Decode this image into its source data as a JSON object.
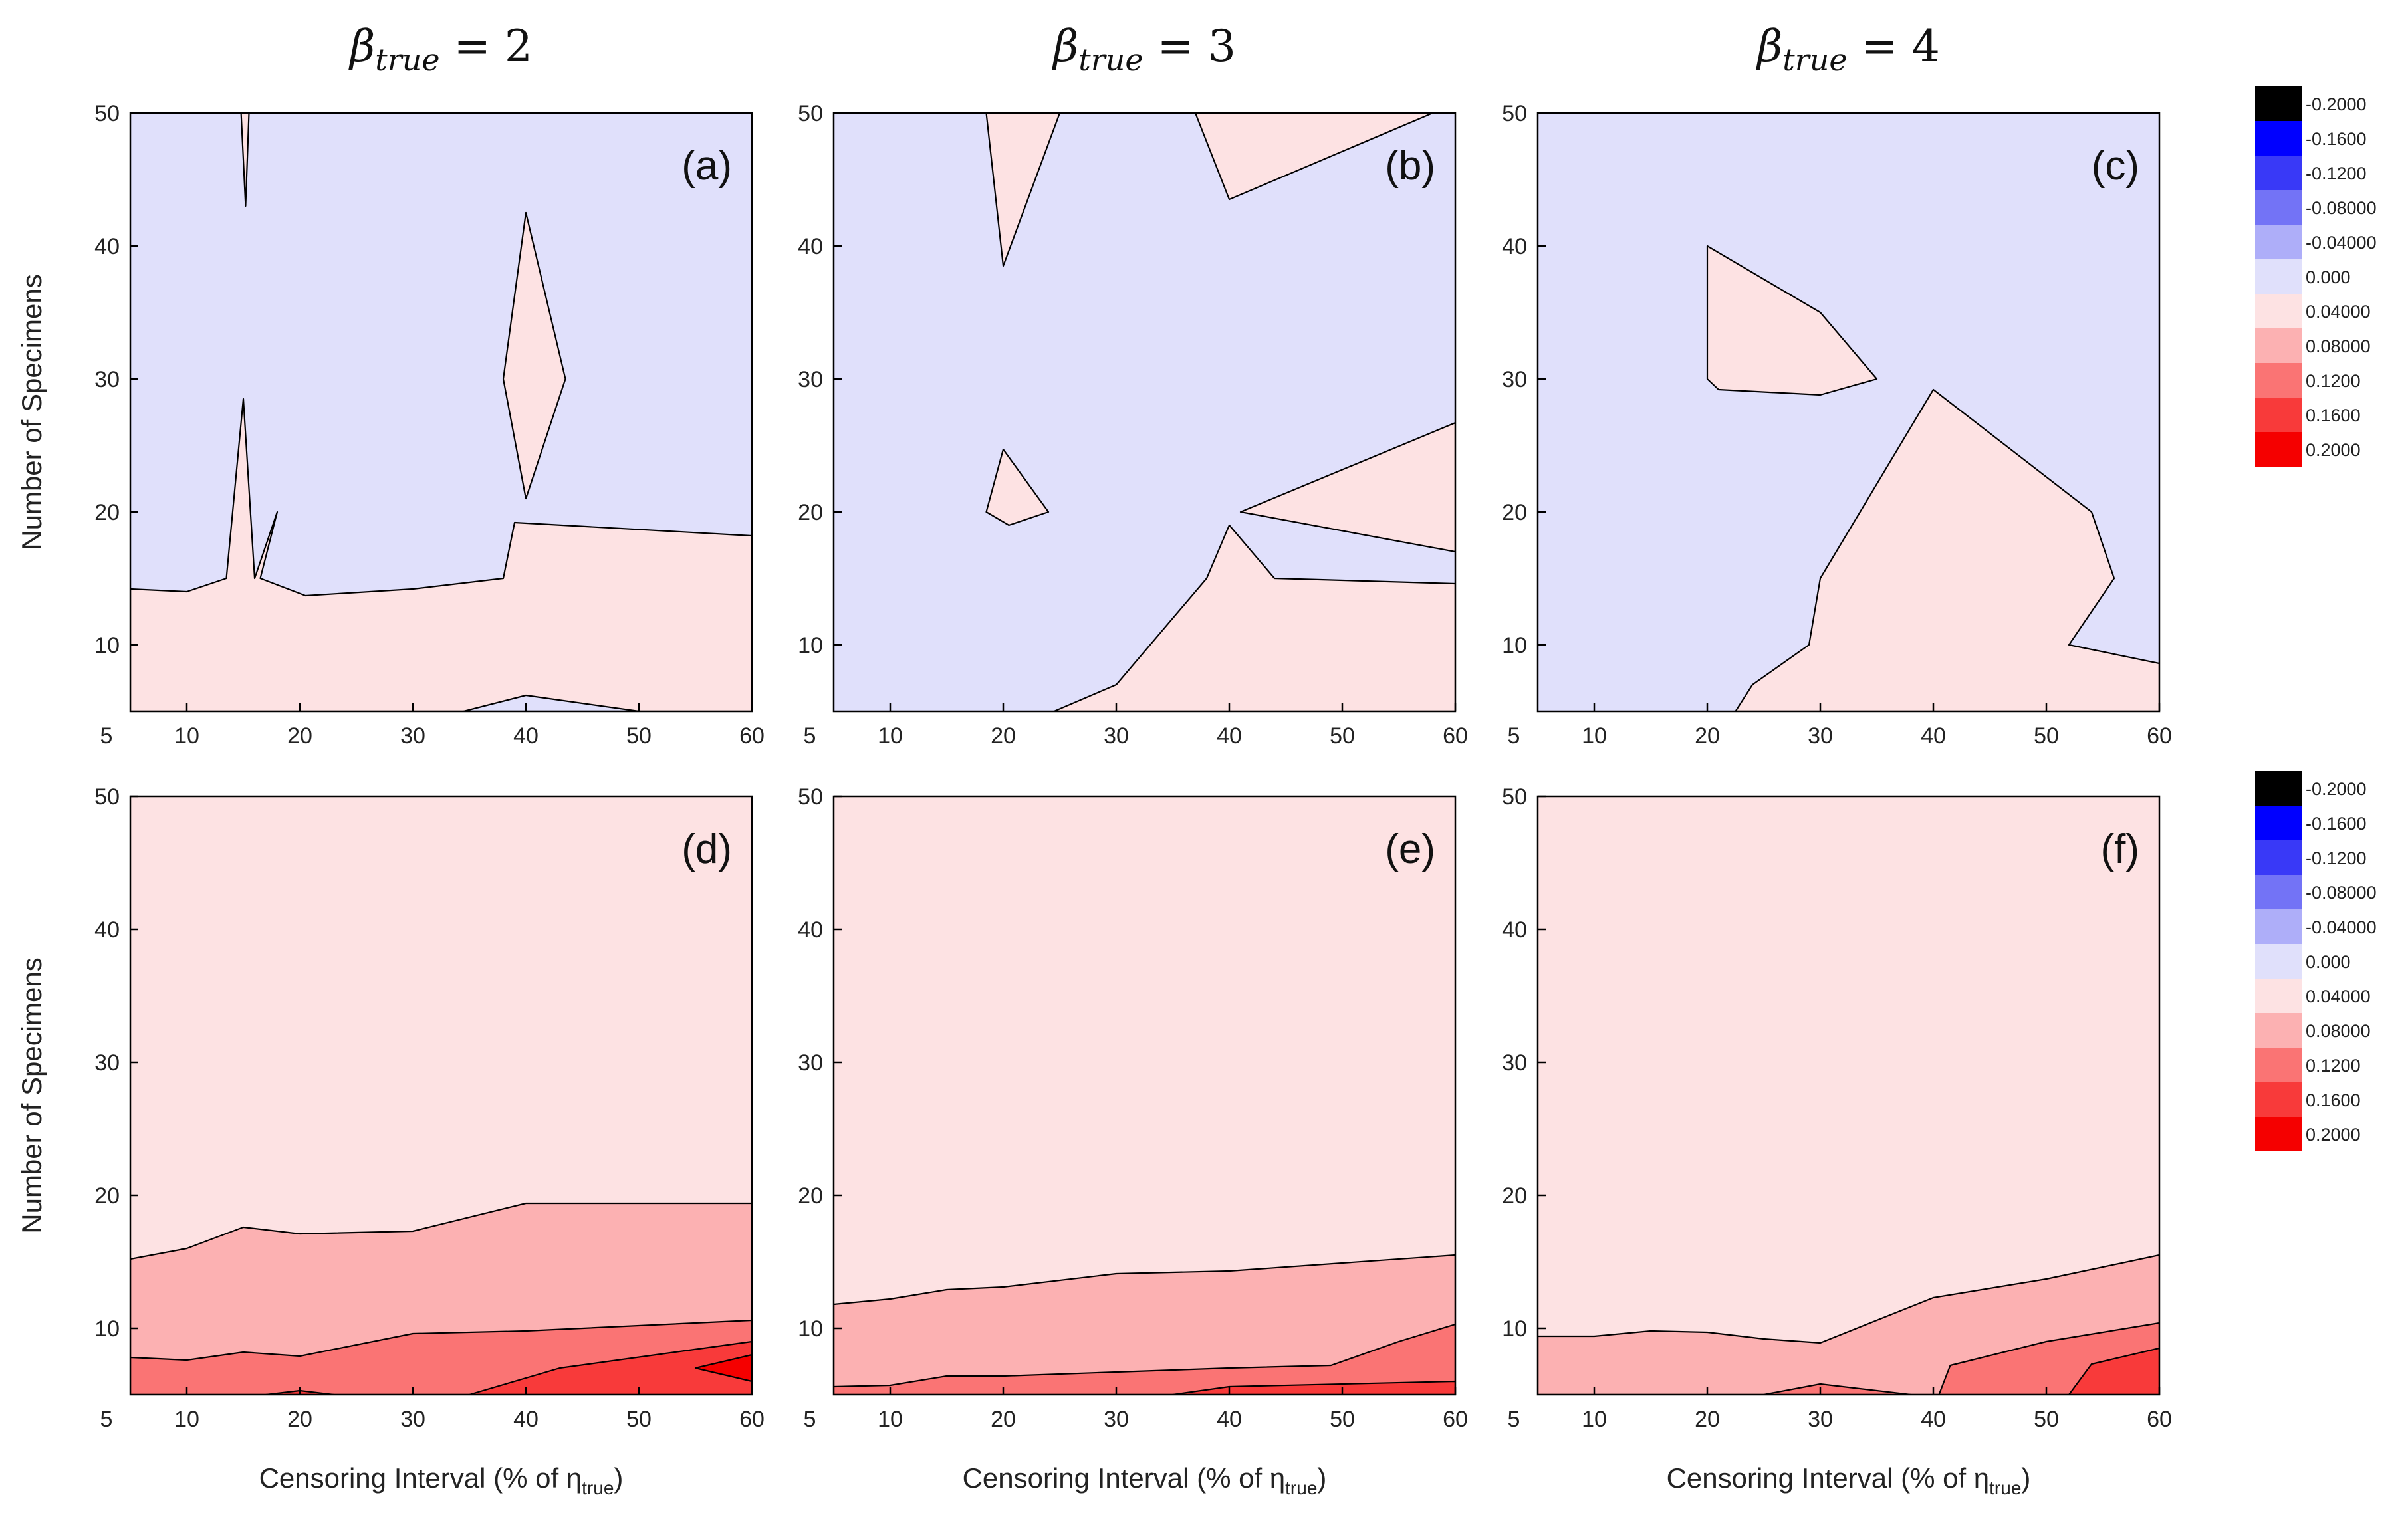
{
  "chart_data": {
    "type": "contour",
    "column_titles": [
      {
        "symbol": "β",
        "subscript": "true",
        "relation": "= 2"
      },
      {
        "symbol": "β",
        "subscript": "true",
        "relation": "= 3"
      },
      {
        "symbol": "β",
        "subscript": "true",
        "relation": "= 4"
      }
    ],
    "xlabel": {
      "prefix": "Censoring Interval (% of ",
      "symbol": "η",
      "subscript": "true",
      "suffix": ")"
    },
    "ylabel": "Number of Specimens",
    "xlim": [
      5,
      60
    ],
    "ylim": [
      5,
      50
    ],
    "x_ticks": [
      "10",
      "20",
      "30",
      "40",
      "50",
      "60"
    ],
    "y_ticks": [
      "10",
      "20",
      "30",
      "40",
      "50"
    ],
    "y_origin_label": "5",
    "level_colors": {
      "l-0.04_0": "#e0e0fb",
      "l0_0.04": "#fde2e3",
      "l0.04_0.08": "#fcb1b2",
      "l0.08_0.12": "#fa7474",
      "l0.12_0.16": "#f83a3a",
      "l0.16_0.20": "#f50000"
    },
    "colorbar": {
      "labels": [
        "-0.2000",
        "-0.1600",
        "-0.1200",
        "-0.08000",
        "-0.04000",
        "0.000",
        "0.04000",
        "0.08000",
        "0.1200",
        "0.1600",
        "0.2000"
      ],
      "colors": [
        "#000000",
        "#0000ff",
        "#3939f7",
        "#7373f6",
        "#aeaef9",
        "#e0e0fb",
        "#fde2e3",
        "#fcb1b2",
        "#fa7474",
        "#f83a3a",
        "#f50000"
      ]
    },
    "panels": [
      {
        "label": "(a)",
        "row": 0,
        "col": 0,
        "background": "l-0.04_0",
        "regions": [
          {
            "level": "l0_0.04",
            "points": [
              [
                5,
                5
              ],
              [
                5,
                14.2
              ],
              [
                10,
                14
              ],
              [
                13.5,
                15
              ],
              [
                15,
                28.5
              ],
              [
                16,
                15
              ],
              [
                18,
                20
              ],
              [
                16.5,
                15
              ],
              [
                20.5,
                13.7
              ],
              [
                30,
                14.2
              ],
              [
                38,
                15
              ],
              [
                39,
                19.2
              ],
              [
                60,
                18.2
              ],
              [
                60,
                5
              ]
            ]
          },
          {
            "level": "l0_0.04",
            "points": [
              [
                14.8,
                50
              ],
              [
                15.2,
                43
              ],
              [
                15.5,
                50
              ]
            ]
          },
          {
            "level": "l0_0.04",
            "points": [
              [
                38,
                30
              ],
              [
                40,
                42.5
              ],
              [
                43.5,
                30
              ],
              [
                40,
                21
              ]
            ]
          },
          {
            "level": "l-0.04_0",
            "points": [
              [
                34.5,
                5
              ],
              [
                40,
                6.2
              ],
              [
                50,
                5
              ]
            ]
          }
        ]
      },
      {
        "label": "(b)",
        "row": 0,
        "col": 1,
        "background": "l-0.04_0",
        "regions": [
          {
            "level": "l0_0.04",
            "points": [
              [
                18.5,
                50
              ],
              [
                20,
                38.5
              ],
              [
                25,
                50
              ]
            ]
          },
          {
            "level": "l0_0.04",
            "points": [
              [
                37,
                50
              ],
              [
                40,
                43.5
              ],
              [
                58,
                50
              ]
            ]
          },
          {
            "level": "l0_0.04",
            "points": [
              [
                18.5,
                20
              ],
              [
                20,
                24.7
              ],
              [
                24,
                20
              ],
              [
                20.5,
                19
              ]
            ]
          },
          {
            "level": "l0_0.04",
            "points": [
              [
                41,
                20
              ],
              [
                60,
                26.7
              ],
              [
                60,
                17
              ]
            ]
          },
          {
            "level": "l0_0.04",
            "points": [
              [
                24.5,
                5
              ],
              [
                30,
                7
              ],
              [
                38,
                15
              ],
              [
                40,
                19
              ],
              [
                44,
                15
              ],
              [
                60,
                14.6
              ],
              [
                60,
                5
              ]
            ]
          }
        ]
      },
      {
        "label": "(c)",
        "row": 0,
        "col": 2,
        "background": "l-0.04_0",
        "regions": [
          {
            "level": "l0_0.04",
            "points": [
              [
                20,
                30
              ],
              [
                20,
                40
              ],
              [
                30,
                35
              ],
              [
                35,
                30
              ],
              [
                30,
                28.8
              ],
              [
                21,
                29.2
              ]
            ]
          },
          {
            "level": "l0_0.04",
            "points": [
              [
                22.5,
                5
              ],
              [
                24,
                7
              ],
              [
                29,
                10
              ],
              [
                30,
                15
              ],
              [
                40,
                29.2
              ],
              [
                54,
                20
              ],
              [
                56,
                15
              ],
              [
                52,
                10
              ],
              [
                60,
                8.6
              ],
              [
                60,
                5
              ]
            ]
          }
        ]
      },
      {
        "label": "(d)",
        "row": 1,
        "col": 0,
        "background": "l0_0.04",
        "regions": [
          {
            "level": "l0.04_0.08",
            "points": [
              [
                5,
                5
              ],
              [
                5,
                15.2
              ],
              [
                10,
                16
              ],
              [
                15,
                17.6
              ],
              [
                20,
                17.1
              ],
              [
                30,
                17.3
              ],
              [
                40,
                19.4
              ],
              [
                60,
                19.4
              ],
              [
                60,
                5
              ]
            ]
          },
          {
            "level": "l0.08_0.12",
            "points": [
              [
                5,
                5
              ],
              [
                5,
                7.8
              ],
              [
                10,
                7.6
              ],
              [
                15,
                8.2
              ],
              [
                20,
                7.9
              ],
              [
                30,
                9.6
              ],
              [
                40,
                9.8
              ],
              [
                60,
                10.6
              ],
              [
                60,
                5
              ]
            ]
          },
          {
            "level": "l0.12_0.16",
            "points": [
              [
                35,
                5
              ],
              [
                43,
                7
              ],
              [
                60,
                9
              ],
              [
                60,
                5
              ]
            ]
          },
          {
            "level": "l0.12_0.16",
            "points": [
              [
                17,
                5
              ],
              [
                20,
                5.3
              ],
              [
                23,
                5
              ]
            ]
          },
          {
            "level": "l0.16_0.20",
            "points": [
              [
                55,
                7
              ],
              [
                60,
                8
              ],
              [
                60,
                6
              ]
            ]
          }
        ]
      },
      {
        "label": "(e)",
        "row": 1,
        "col": 1,
        "background": "l0_0.04",
        "regions": [
          {
            "level": "l0.04_0.08",
            "points": [
              [
                5,
                5
              ],
              [
                5,
                11.8
              ],
              [
                10,
                12.2
              ],
              [
                15,
                12.9
              ],
              [
                20,
                13.1
              ],
              [
                30,
                14.1
              ],
              [
                40,
                14.3
              ],
              [
                60,
                15.5
              ],
              [
                60,
                5
              ]
            ]
          },
          {
            "level": "l0.08_0.12",
            "points": [
              [
                5,
                5
              ],
              [
                5,
                5.6
              ],
              [
                10,
                5.7
              ],
              [
                15,
                6.4
              ],
              [
                20,
                6.4
              ],
              [
                30,
                6.7
              ],
              [
                40,
                7
              ],
              [
                49,
                7.2
              ],
              [
                55,
                9
              ],
              [
                60,
                10.3
              ],
              [
                60,
                5
              ]
            ]
          },
          {
            "level": "l0.12_0.16",
            "points": [
              [
                35,
                5
              ],
              [
                40,
                5.6
              ],
              [
                60,
                6
              ],
              [
                60,
                5
              ]
            ]
          }
        ]
      },
      {
        "label": "(f)",
        "row": 1,
        "col": 2,
        "background": "l0_0.04",
        "regions": [
          {
            "level": "l0.04_0.08",
            "points": [
              [
                5,
                5
              ],
              [
                5,
                9.4
              ],
              [
                10,
                9.4
              ],
              [
                15,
                9.8
              ],
              [
                20,
                9.7
              ],
              [
                25,
                9.2
              ],
              [
                30,
                8.9
              ],
              [
                40,
                12.3
              ],
              [
                50,
                13.7
              ],
              [
                60,
                15.5
              ],
              [
                60,
                5
              ]
            ]
          },
          {
            "level": "l0.08_0.12",
            "points": [
              [
                40.5,
                5
              ],
              [
                41.5,
                7.2
              ],
              [
                50,
                9
              ],
              [
                60,
                10.4
              ],
              [
                60,
                5
              ]
            ]
          },
          {
            "level": "l0.08_0.12",
            "points": [
              [
                25,
                5
              ],
              [
                30,
                5.8
              ],
              [
                38,
                5
              ]
            ]
          },
          {
            "level": "l0.12_0.16",
            "points": [
              [
                52,
                5
              ],
              [
                54,
                7.3
              ],
              [
                60,
                8.5
              ],
              [
                60,
                5
              ]
            ]
          }
        ]
      }
    ]
  }
}
